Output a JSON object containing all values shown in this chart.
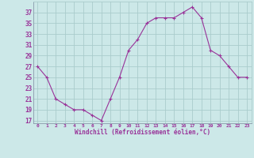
{
  "x": [
    0,
    1,
    2,
    3,
    4,
    5,
    6,
    7,
    8,
    9,
    10,
    11,
    12,
    13,
    14,
    15,
    16,
    17,
    18,
    19,
    20,
    21,
    22,
    23
  ],
  "y": [
    27,
    25,
    21,
    20,
    19,
    19,
    18,
    17,
    21,
    25,
    30,
    32,
    35,
    36,
    36,
    36,
    37,
    38,
    36,
    30,
    29,
    27,
    25,
    25
  ],
  "line_color": "#993399",
  "marker": "+",
  "bg_color": "#cce8e8",
  "grid_color": "#aacccc",
  "xlabel": "Windchill (Refroidissement éolien,°C)",
  "xlabel_color": "#993399",
  "tick_color": "#993399",
  "yticks": [
    17,
    19,
    21,
    23,
    25,
    27,
    29,
    31,
    33,
    35,
    37
  ],
  "xticks": [
    0,
    1,
    2,
    3,
    4,
    5,
    6,
    7,
    8,
    9,
    10,
    11,
    12,
    13,
    14,
    15,
    16,
    17,
    18,
    19,
    20,
    21,
    22,
    23
  ],
  "ylim": [
    16.5,
    39
  ],
  "xlim": [
    -0.5,
    23.5
  ],
  "figsize": [
    3.2,
    2.0
  ],
  "dpi": 100
}
